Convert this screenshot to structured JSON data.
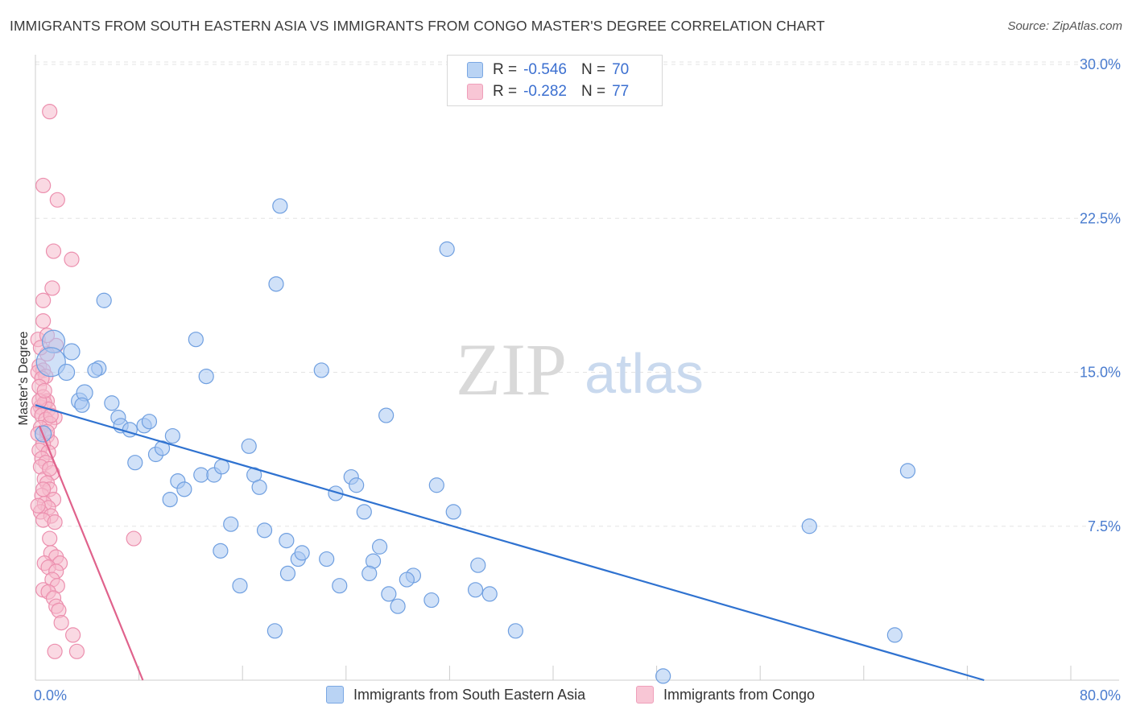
{
  "title": "IMMIGRANTS FROM SOUTH EASTERN ASIA VS IMMIGRANTS FROM CONGO MASTER'S DEGREE CORRELATION CHART",
  "source": "Source: ZipAtlas.com",
  "watermark": {
    "zip": "ZIP",
    "atlas": "atlas"
  },
  "legend": {
    "rows": [
      {
        "r_label": "R =",
        "r_value": "-0.546",
        "n_label": "N =",
        "n_value": "70"
      },
      {
        "r_label": "R =",
        "r_value": "-0.282",
        "n_label": "N =",
        "n_value": "77"
      }
    ]
  },
  "colors": {
    "blue_fill": "#aac8f2",
    "blue_stroke": "#6f9fe0",
    "blue_line": "#2f72d0",
    "pink_fill": "#f6b9cc",
    "pink_stroke": "#ec8fae",
    "pink_line": "#e0628c",
    "grid": "#e3e3e3",
    "axis_text": "#4a7ccf"
  },
  "chart_data": {
    "type": "scatter",
    "title": "IMMIGRANTS FROM SOUTH EASTERN ASIA VS IMMIGRANTS FROM CONGO MASTER'S DEGREE CORRELATION CHART",
    "xlabel": "",
    "ylabel": "Master's Degree",
    "xlim": [
      0,
      80
    ],
    "ylim": [
      0,
      30
    ],
    "x_tick_labels": [
      "0.0%",
      "80.0%"
    ],
    "y_ticks": [
      {
        "value": 7.5,
        "label": "7.5%"
      },
      {
        "value": 15,
        "label": "15.0%"
      },
      {
        "value": 22.5,
        "label": "22.5%"
      },
      {
        "value": 30,
        "label": "30.0%"
      }
    ],
    "grid": true,
    "series": [
      {
        "name": "Immigrants from South Eastern Asia",
        "color": "blue",
        "r": -0.546,
        "n": 70,
        "trend": {
          "x": [
            0,
            73.3
          ],
          "y": [
            13.4,
            0
          ]
        },
        "points": [
          [
            1.4,
            16.5,
            14
          ],
          [
            1.2,
            15.5,
            18
          ],
          [
            2.8,
            16.0,
            10
          ],
          [
            2.4,
            15.0,
            10
          ],
          [
            0.6,
            12.0,
            10
          ],
          [
            3.4,
            13.6,
            10
          ],
          [
            3.8,
            14.0,
            10
          ],
          [
            5.3,
            18.5,
            9
          ],
          [
            4.9,
            15.2,
            9
          ],
          [
            4.6,
            15.1,
            9
          ],
          [
            5.9,
            13.5,
            9
          ],
          [
            6.4,
            12.8,
            9
          ],
          [
            6.6,
            12.4,
            9
          ],
          [
            7.3,
            12.2,
            9
          ],
          [
            8.4,
            12.4,
            9
          ],
          [
            8.8,
            12.6,
            9
          ],
          [
            9.3,
            11.0,
            9
          ],
          [
            9.8,
            11.3,
            9
          ],
          [
            10.6,
            11.9,
            9
          ],
          [
            7.7,
            10.6,
            9
          ],
          [
            12.4,
            16.6,
            9
          ],
          [
            13.2,
            14.8,
            9
          ],
          [
            11.0,
            9.7,
            9
          ],
          [
            11.5,
            9.3,
            9
          ],
          [
            10.4,
            8.8,
            9
          ],
          [
            12.8,
            10.0,
            9
          ],
          [
            13.8,
            10.0,
            9
          ],
          [
            14.4,
            10.4,
            9
          ],
          [
            16.5,
            11.4,
            9
          ],
          [
            16.9,
            10.0,
            9
          ],
          [
            17.3,
            9.4,
            9
          ],
          [
            18.6,
            19.3,
            9
          ],
          [
            18.9,
            23.1,
            9
          ],
          [
            22.1,
            15.1,
            9
          ],
          [
            15.1,
            7.6,
            9
          ],
          [
            14.3,
            6.3,
            9
          ],
          [
            17.7,
            7.3,
            9
          ],
          [
            19.4,
            6.8,
            9
          ],
          [
            20.3,
            5.9,
            9
          ],
          [
            20.6,
            6.2,
            9
          ],
          [
            22.5,
            5.9,
            9
          ],
          [
            19.5,
            5.2,
            9
          ],
          [
            23.2,
            9.1,
            9
          ],
          [
            24.4,
            9.9,
            9
          ],
          [
            24.8,
            9.5,
            9
          ],
          [
            25.4,
            8.2,
            9
          ],
          [
            26.1,
            5.8,
            9
          ],
          [
            26.6,
            6.5,
            9
          ],
          [
            25.8,
            5.2,
            9
          ],
          [
            27.1,
            12.9,
            9
          ],
          [
            23.5,
            4.6,
            9
          ],
          [
            27.3,
            4.2,
            9
          ],
          [
            29.2,
            5.1,
            9
          ],
          [
            28.7,
            4.9,
            9
          ],
          [
            28.0,
            3.6,
            9
          ],
          [
            30.6,
            3.9,
            9
          ],
          [
            31.0,
            9.5,
            9
          ],
          [
            31.8,
            21.0,
            9
          ],
          [
            32.3,
            8.2,
            9
          ],
          [
            34.2,
            5.6,
            9
          ],
          [
            34.0,
            4.4,
            9
          ],
          [
            35.1,
            4.2,
            9
          ],
          [
            37.1,
            2.4,
            9
          ],
          [
            15.8,
            4.6,
            9
          ],
          [
            18.5,
            2.4,
            9
          ],
          [
            48.5,
            0.2,
            9
          ],
          [
            59.8,
            7.5,
            9
          ],
          [
            67.4,
            10.2,
            9
          ],
          [
            66.4,
            2.2,
            9
          ],
          [
            3.6,
            13.4,
            9
          ]
        ]
      },
      {
        "name": "Immigrants from Congo",
        "color": "pink",
        "r": -0.282,
        "n": 77,
        "trend": {
          "x": [
            0.3,
            8.3
          ],
          "y": [
            12.4,
            0
          ]
        },
        "points": [
          [
            1.1,
            27.7,
            9
          ],
          [
            0.6,
            24.1,
            9
          ],
          [
            1.7,
            23.4,
            9
          ],
          [
            1.4,
            20.9,
            9
          ],
          [
            2.8,
            20.5,
            9
          ],
          [
            1.3,
            19.1,
            9
          ],
          [
            0.6,
            18.5,
            9
          ],
          [
            0.6,
            17.5,
            9
          ],
          [
            0.2,
            16.6,
            9
          ],
          [
            1.6,
            16.3,
            9
          ],
          [
            0.9,
            15.9,
            9
          ],
          [
            0.3,
            15.3,
            9
          ],
          [
            0.6,
            15.1,
            9
          ],
          [
            0.2,
            15.0,
            9
          ],
          [
            0.8,
            14.8,
            9
          ],
          [
            0.5,
            14.7,
            9
          ],
          [
            0.3,
            14.3,
            9
          ],
          [
            0.6,
            13.8,
            9
          ],
          [
            0.9,
            13.6,
            9
          ],
          [
            0.4,
            13.3,
            9
          ],
          [
            0.7,
            13.5,
            9
          ],
          [
            1.0,
            13.2,
            9
          ],
          [
            0.2,
            13.1,
            9
          ],
          [
            0.5,
            12.9,
            9
          ],
          [
            1.5,
            12.8,
            9
          ],
          [
            0.8,
            12.7,
            9
          ],
          [
            1.1,
            12.5,
            9
          ],
          [
            0.4,
            12.3,
            9
          ],
          [
            0.9,
            11.9,
            9
          ],
          [
            1.2,
            11.6,
            9
          ],
          [
            0.6,
            11.5,
            9
          ],
          [
            0.3,
            11.2,
            9
          ],
          [
            1.0,
            11.1,
            9
          ],
          [
            0.5,
            10.8,
            9
          ],
          [
            0.8,
            10.6,
            9
          ],
          [
            0.4,
            10.4,
            9
          ],
          [
            1.3,
            10.1,
            9
          ],
          [
            0.7,
            9.8,
            9
          ],
          [
            0.9,
            9.6,
            9
          ],
          [
            1.1,
            9.3,
            9
          ],
          [
            0.5,
            9.0,
            9
          ],
          [
            1.4,
            8.8,
            9
          ],
          [
            0.7,
            8.6,
            9
          ],
          [
            1.0,
            8.4,
            9
          ],
          [
            0.4,
            8.2,
            9
          ],
          [
            1.2,
            8.0,
            9
          ],
          [
            0.6,
            7.8,
            9
          ],
          [
            1.5,
            7.7,
            9
          ],
          [
            1.1,
            6.9,
            9
          ],
          [
            7.6,
            6.9,
            9
          ],
          [
            1.2,
            6.2,
            9
          ],
          [
            1.6,
            6.0,
            9
          ],
          [
            0.7,
            5.7,
            9
          ],
          [
            1.9,
            5.7,
            9
          ],
          [
            1.0,
            5.5,
            9
          ],
          [
            1.6,
            5.3,
            9
          ],
          [
            1.3,
            4.9,
            9
          ],
          [
            1.7,
            4.6,
            9
          ],
          [
            0.6,
            4.4,
            9
          ],
          [
            1.0,
            4.3,
            9
          ],
          [
            1.4,
            4.0,
            9
          ],
          [
            1.6,
            3.6,
            9
          ],
          [
            1.8,
            3.4,
            9
          ],
          [
            2.0,
            2.8,
            9
          ],
          [
            2.9,
            2.2,
            9
          ],
          [
            1.5,
            1.4,
            9
          ],
          [
            3.2,
            1.4,
            9
          ],
          [
            0.2,
            12.0,
            9
          ],
          [
            0.9,
            12.1,
            9
          ],
          [
            0.3,
            13.6,
            9
          ],
          [
            1.2,
            12.9,
            9
          ],
          [
            0.7,
            14.1,
            9
          ],
          [
            0.4,
            16.2,
            9
          ],
          [
            0.9,
            16.8,
            9
          ],
          [
            1.1,
            10.3,
            9
          ],
          [
            0.6,
            9.3,
            9
          ],
          [
            0.2,
            8.5,
            9
          ]
        ]
      }
    ]
  }
}
